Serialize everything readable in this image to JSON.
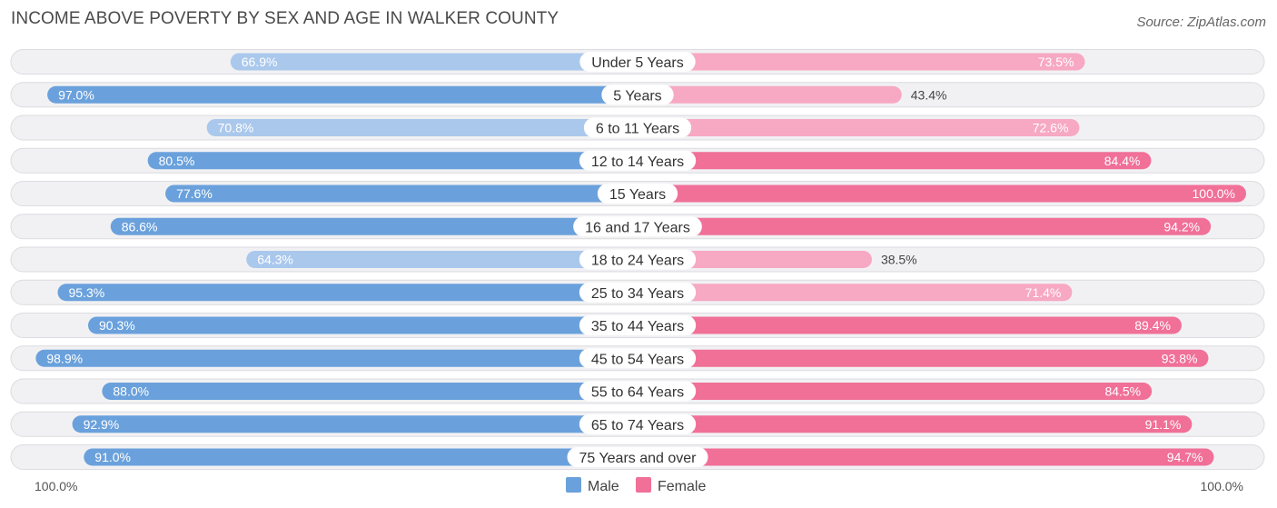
{
  "title": "INCOME ABOVE POVERTY BY SEX AND AGE IN WALKER COUNTY",
  "source": "Source: ZipAtlas.com",
  "colors": {
    "male_strong": "#6aa1dc",
    "male_light": "#aac8ec",
    "female_strong": "#f07098",
    "female_light": "#f7a8c2",
    "row_bg": "#f1f1f3",
    "row_border": "#dcdce0"
  },
  "chart_data": {
    "type": "bar",
    "orientation": "horizontal-diverging",
    "title": "INCOME ABOVE POVERTY BY SEX AND AGE IN WALKER COUNTY",
    "categories": [
      "Under 5 Years",
      "5 Years",
      "6 to 11 Years",
      "12 to 14 Years",
      "15 Years",
      "16 and 17 Years",
      "18 to 24 Years",
      "25 to 34 Years",
      "35 to 44 Years",
      "45 to 54 Years",
      "55 to 64 Years",
      "65 to 74 Years",
      "75 Years and over"
    ],
    "series": [
      {
        "name": "Male",
        "values": [
          66.9,
          97.0,
          70.8,
          80.5,
          77.6,
          86.6,
          64.3,
          95.3,
          90.3,
          98.9,
          88.0,
          92.9,
          91.0
        ],
        "labels": [
          "66.9%",
          "97.0%",
          "70.8%",
          "80.5%",
          "77.6%",
          "86.6%",
          "64.3%",
          "95.3%",
          "90.3%",
          "98.9%",
          "88.0%",
          "92.9%",
          "91.0%"
        ]
      },
      {
        "name": "Female",
        "values": [
          73.5,
          43.4,
          72.6,
          84.4,
          100.0,
          94.2,
          38.5,
          71.4,
          89.4,
          93.8,
          84.5,
          91.1,
          94.7
        ],
        "labels": [
          "73.5%",
          "43.4%",
          "72.6%",
          "84.4%",
          "100.0%",
          "94.2%",
          "38.5%",
          "71.4%",
          "89.4%",
          "93.8%",
          "84.5%",
          "91.1%",
          "94.7%"
        ]
      }
    ],
    "xlim": [
      0,
      100
    ],
    "axis_left_label": "100.0%",
    "axis_right_label": "100.0%",
    "legend": [
      "Male",
      "Female"
    ],
    "legend_position": "bottom-center"
  }
}
